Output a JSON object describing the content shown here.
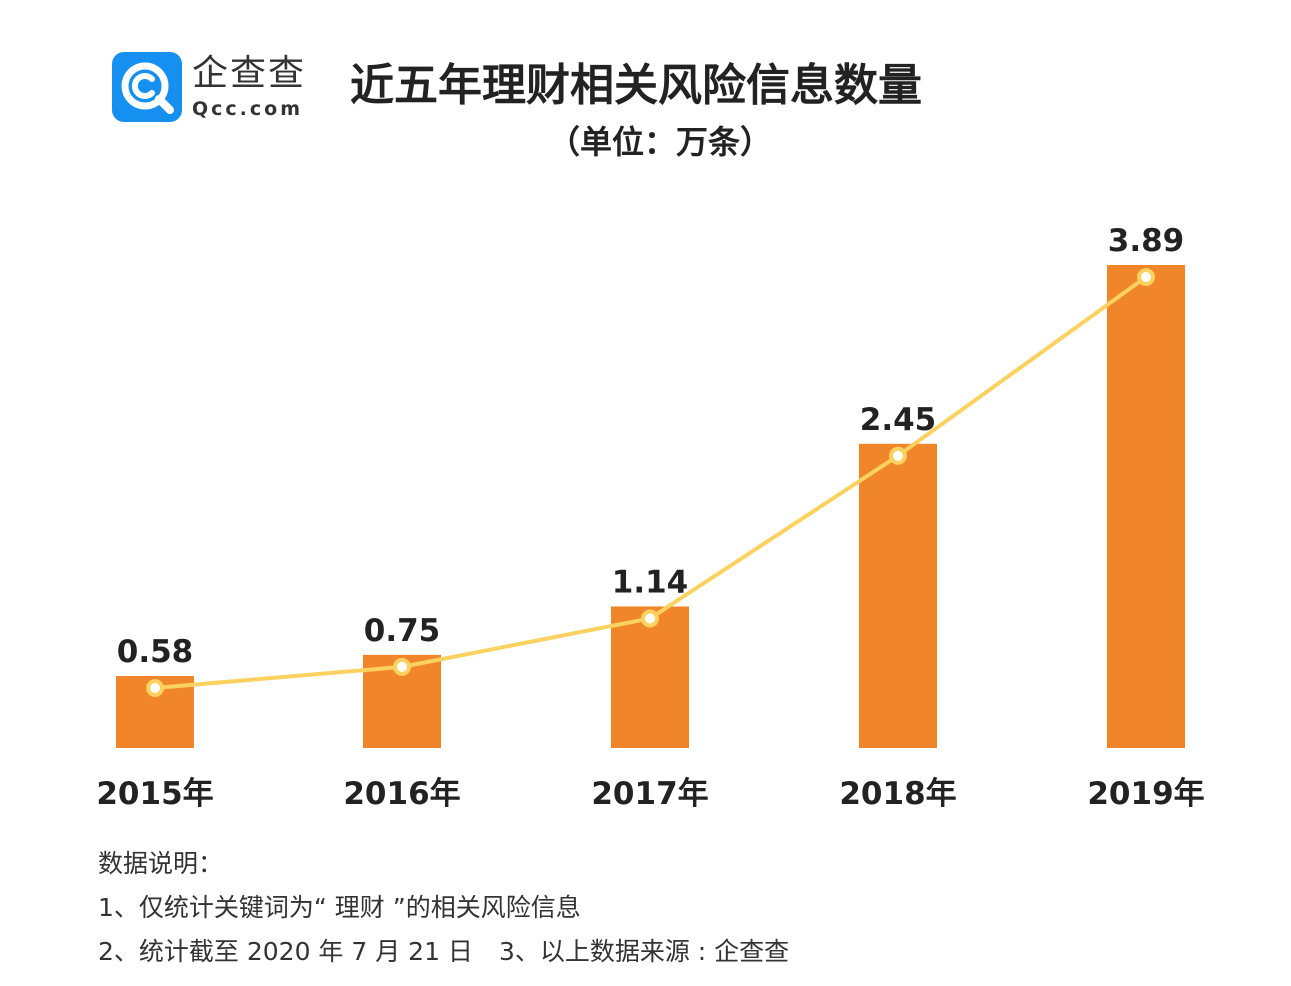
{
  "brand": {
    "name_cn": "企查查",
    "name_en": "Qcc.com",
    "color": "#1690f0",
    "icon": "qcc-logo-icon"
  },
  "chart_data": {
    "type": "bar",
    "title": "近五年理财相关风险信息数量",
    "subtitle": "（单位：万条）",
    "categories": [
      "2015年",
      "2016年",
      "2017年",
      "2018年",
      "2019年"
    ],
    "values": [
      0.58,
      0.75,
      1.14,
      2.45,
      3.89
    ],
    "value_labels": [
      "0.58",
      "0.75",
      "1.14",
      "2.45",
      "3.89"
    ],
    "series": [
      {
        "name": "bar",
        "type": "bar",
        "values": [
          0.58,
          0.75,
          1.14,
          2.45,
          3.89
        ],
        "color": "#f08629"
      },
      {
        "name": "line",
        "type": "line",
        "values": [
          0.58,
          0.75,
          1.14,
          2.45,
          3.89
        ],
        "color": "#fbd15f"
      }
    ],
    "ylim": [
      0,
      3.89
    ],
    "grid": false,
    "xlabel": "",
    "ylabel": ""
  },
  "notes": {
    "heading": "数据说明：",
    "line1": "1、仅统计关键词为“ 理财 ”的相关风险信息",
    "line2a": "2、统计截至 2020 年 7 月 21 日",
    "line2b": "3、以上数据来源 : 企查查"
  }
}
